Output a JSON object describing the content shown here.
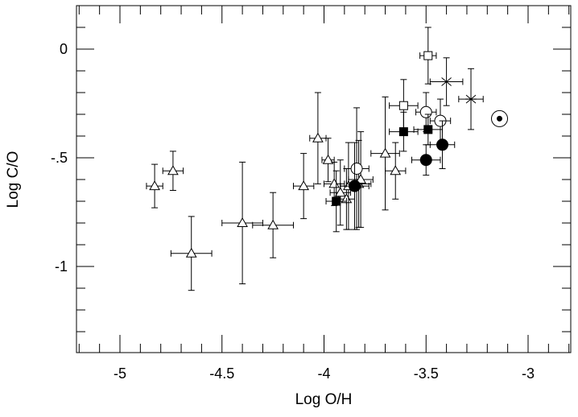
{
  "chart_data": {
    "type": "scatter",
    "title": "",
    "xlabel": "Log O/H",
    "ylabel": "Log C/O",
    "xlim": [
      -5.2,
      -2.8
    ],
    "ylim": [
      -1.4,
      0.2
    ],
    "x_ticks": [
      {
        "value": -5,
        "label": "-5"
      },
      {
        "value": -4.5,
        "label": "-4.5"
      },
      {
        "value": -4,
        "label": "-4"
      },
      {
        "value": -3.5,
        "label": "-3.5"
      },
      {
        "value": -3,
        "label": "-3"
      }
    ],
    "y_ticks": [
      {
        "value": 0,
        "label": "0"
      },
      {
        "value": -0.5,
        "label": "-.5"
      },
      {
        "value": -1,
        "label": "-1"
      }
    ],
    "x_minor_step": 0.1,
    "y_minor_step": 0.1,
    "grid": false,
    "legend": "none",
    "series": [
      {
        "marker": "open-triangle",
        "points": [
          {
            "x": -4.83,
            "y": -0.63,
            "xerr": 0.04,
            "yerr": 0.1
          },
          {
            "x": -4.74,
            "y": -0.56,
            "xerr": 0.05,
            "yerr": 0.09
          },
          {
            "x": -4.65,
            "y": -0.94,
            "xerr": 0.1,
            "yerr": 0.17
          },
          {
            "x": -4.4,
            "y": -0.8,
            "xerr": 0.1,
            "yerr": 0.28
          },
          {
            "x": -4.25,
            "y": -0.81,
            "xerr": 0.1,
            "yerr": 0.15
          },
          {
            "x": -4.1,
            "y": -0.63,
            "xerr": 0.05,
            "yerr": 0.15
          },
          {
            "x": -4.03,
            "y": -0.41,
            "xerr": 0.04,
            "yerr": 0.21
          },
          {
            "x": -3.98,
            "y": -0.51,
            "xerr": 0.03,
            "yerr": 0.1
          },
          {
            "x": -3.95,
            "y": -0.62,
            "xerr": 0.05,
            "yerr": 0.1
          },
          {
            "x": -3.92,
            "y": -0.66,
            "xerr": 0.05,
            "yerr": 0.15
          },
          {
            "x": -3.89,
            "y": -0.69,
            "xerr": 0.04,
            "yerr": 0.14
          },
          {
            "x": -3.88,
            "y": -0.63,
            "xerr": 0.04,
            "yerr": 0.2
          },
          {
            "x": -3.83,
            "y": -0.62,
            "xerr": 0.06,
            "yerr": 0.2
          },
          {
            "x": -3.82,
            "y": -0.6,
            "xerr": 0.06,
            "yerr": 0.22
          },
          {
            "x": -3.7,
            "y": -0.48,
            "xerr": 0.07,
            "yerr": 0.26
          },
          {
            "x": -3.65,
            "y": -0.56,
            "xerr": 0.05,
            "yerr": 0.13
          }
        ]
      },
      {
        "marker": "open-circle",
        "points": [
          {
            "x": -3.84,
            "y": -0.55,
            "xerr": 0.06,
            "yerr": 0.28
          },
          {
            "x": -3.5,
            "y": -0.29,
            "xerr": 0.05,
            "yerr": 0.09
          },
          {
            "x": -3.43,
            "y": -0.33,
            "xerr": 0.05,
            "yerr": 0.1
          }
        ]
      },
      {
        "marker": "filled-circle",
        "points": [
          {
            "x": -3.85,
            "y": -0.63,
            "xerr": 0.07,
            "yerr": 0.2
          },
          {
            "x": -3.5,
            "y": -0.51,
            "xerr": 0.07,
            "yerr": 0.07
          },
          {
            "x": -3.42,
            "y": -0.44,
            "xerr": 0.06,
            "yerr": 0.11
          }
        ]
      },
      {
        "marker": "filled-square",
        "points": [
          {
            "x": -3.94,
            "y": -0.7,
            "xerr": 0.05,
            "yerr": 0.14
          },
          {
            "x": -3.61,
            "y": -0.38,
            "xerr": 0.07,
            "yerr": 0.09
          },
          {
            "x": -3.49,
            "y": -0.37,
            "xerr": 0.07,
            "yerr": 0.07
          }
        ]
      },
      {
        "marker": "open-square",
        "points": [
          {
            "x": -3.61,
            "y": -0.26,
            "xerr": 0.07,
            "yerr": 0.12
          },
          {
            "x": -3.49,
            "y": -0.03,
            "xerr": 0.04,
            "yerr": 0.13
          }
        ]
      },
      {
        "marker": "asterisk",
        "points": [
          {
            "x": -3.4,
            "y": -0.15,
            "xerr": 0.08,
            "yerr": 0.11
          },
          {
            "x": -3.28,
            "y": -0.23,
            "xerr": 0.06,
            "yerr": 0.14
          }
        ]
      },
      {
        "marker": "sun-symbol",
        "points": [
          {
            "x": -3.14,
            "y": -0.32
          }
        ]
      }
    ]
  }
}
